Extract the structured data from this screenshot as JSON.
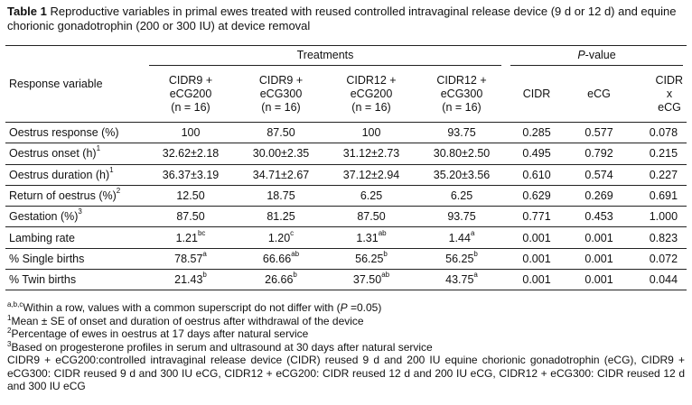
{
  "caption": {
    "label": "Table 1",
    "text": "Reproductive variables in primal ewes treated with reused controlled intravaginal release device (9 d or 12 d) and equine chorionic gonadotrophin (200 or 300 IU) at device removal"
  },
  "table": {
    "header": {
      "response": "Response variable",
      "treatments": "Treatments",
      "pvalue": {
        "italic": "P",
        "text": "-value"
      },
      "columns": [
        [
          "CIDR9 +",
          "eCG200",
          "(n = 16)"
        ],
        [
          "CIDR9 +",
          "eCG300",
          "(n = 16)"
        ],
        [
          "CIDR12 +",
          "eCG200",
          "(n = 16)"
        ],
        [
          "CIDR12 +",
          "eCG300",
          "(n = 16)"
        ]
      ],
      "pcolumns": [
        [
          "CIDR"
        ],
        [
          "eCG"
        ],
        [
          "CIDR",
          "x",
          "eCG"
        ]
      ]
    },
    "rows": [
      [
        {
          "text": "Oestrus response (%)"
        },
        "100",
        "87.50",
        "100",
        "93.75",
        "0.285",
        "0.577",
        "0.078"
      ],
      [
        {
          "text": "Oestrus onset (h)",
          "sup": "1"
        },
        "32.62±2.18",
        "30.00±2.35",
        "31.12±2.73",
        "30.80±2.50",
        "0.495",
        "0.792",
        "0.215"
      ],
      [
        {
          "text": "Oestrus duration (h)",
          "sup": "1"
        },
        "36.37±3.19",
        "34.71±2.67",
        "37.12±2.94",
        "35.20±3.56",
        "0.610",
        "0.574",
        "0.227"
      ],
      [
        {
          "text": "Return of oestrus (%)",
          "sup": "2"
        },
        "12.50",
        "18.75",
        "6.25",
        "6.25",
        "0.629",
        "0.269",
        "0.691"
      ],
      [
        {
          "text": "Gestation  (%)",
          "sup": "3"
        },
        "87.50",
        "81.25",
        "87.50",
        "93.75",
        "0.771",
        "0.453",
        "1.000"
      ],
      [
        {
          "text": "Lambing rate"
        },
        {
          "text": "1.21",
          "sup": "bc"
        },
        {
          "text": "1.20",
          "sup": "c"
        },
        {
          "text": "1.31",
          "sup": "ab"
        },
        {
          "text": "1.44",
          "sup": "a"
        },
        "0.001",
        "0.001",
        "0.823"
      ],
      [
        {
          "text": "% Single births"
        },
        {
          "text": "78.57",
          "sup": "a"
        },
        {
          "text": "66.66",
          "sup": "ab"
        },
        {
          "text": "56.25",
          "sup": "b"
        },
        {
          "text": "56.25",
          "sup": "b"
        },
        "0.001",
        "0.001",
        "0.072"
      ],
      [
        {
          "text": "% Twin births"
        },
        {
          "text": "21.43",
          "sup": "b"
        },
        {
          "text": "26.66",
          "sup": "b"
        },
        {
          "text": "37.50",
          "sup": "ab"
        },
        {
          "text": "43.75",
          "sup": "a"
        },
        "0.001",
        "0.001",
        "0.044"
      ]
    ]
  },
  "footnotes": [
    {
      "sup": "a,b,c",
      "text": "Within a row, values with a common superscript do not differ with (",
      "italic": "P",
      "after": " =0.05)"
    },
    {
      "sup": "1",
      "text": "Mean ± SE of onset and duration of oestrus after withdrawal of the device"
    },
    {
      "sup": "2",
      "text": "Percentage of ewes in oestrus at 17 days after natural service"
    },
    {
      "sup": "3",
      "text": "Based on progesterone profiles in serum and ultrasound at 30 days after natural service"
    }
  ],
  "abbreviations": "CIDR9 + eCG200:controlled intravaginal release device (CIDR) reused 9 d and 200 IU equine chorionic gonadotrophin (eCG), CIDR9 + eCG300: CIDR reused 9 d and 300 IU eCG, CIDR12 + eCG200: CIDR reused 12 d and 200 IU eCG, CIDR12 + eCG300: CIDR reused 12 d and 300 IU eCG"
}
